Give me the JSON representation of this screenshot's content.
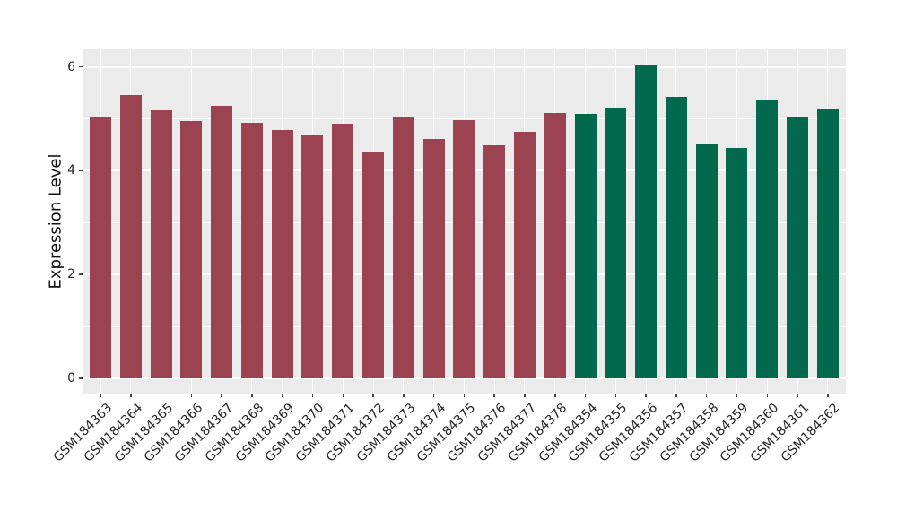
{
  "figure": {
    "panel_background": "#EBEBEB",
    "grid_color": "#FFFFFF",
    "tick_color": "#444444",
    "text_color": "#262626"
  },
  "chart_data": {
    "type": "bar",
    "title": "",
    "xlabel": "",
    "ylabel": "Expression Level",
    "ylim": [
      -0.3,
      6.35
    ],
    "yticks": [
      0,
      2,
      4,
      6
    ],
    "yticks_minor": [
      1,
      3,
      5
    ],
    "grid": "on",
    "legend": "none",
    "categories": [
      "GSM184363",
      "GSM184364",
      "GSM184365",
      "GSM184366",
      "GSM184367",
      "GSM184368",
      "GSM184369",
      "GSM184370",
      "GSM184371",
      "GSM184372",
      "GSM184373",
      "GSM184374",
      "GSM184375",
      "GSM184376",
      "GSM184377",
      "GSM184378",
      "GSM184354",
      "GSM184355",
      "GSM184356",
      "GSM184357",
      "GSM184358",
      "GSM184359",
      "GSM184360",
      "GSM184361",
      "GSM184362"
    ],
    "values": [
      5.02,
      5.46,
      5.16,
      4.96,
      5.25,
      4.93,
      4.79,
      4.68,
      4.91,
      4.37,
      5.05,
      4.61,
      4.98,
      4.49,
      4.75,
      5.12,
      5.1,
      5.2,
      6.03,
      5.43,
      4.5,
      4.44,
      5.35,
      5.03,
      5.18
    ],
    "bar_groups": [
      "group1",
      "group1",
      "group1",
      "group1",
      "group1",
      "group1",
      "group1",
      "group1",
      "group1",
      "group1",
      "group1",
      "group1",
      "group1",
      "group1",
      "group1",
      "group1",
      "group2",
      "group2",
      "group2",
      "group2",
      "group2",
      "group2",
      "group2",
      "group2",
      "group2"
    ],
    "group_colors": {
      "group1": "#9B4350",
      "group2": "#03694C"
    }
  }
}
